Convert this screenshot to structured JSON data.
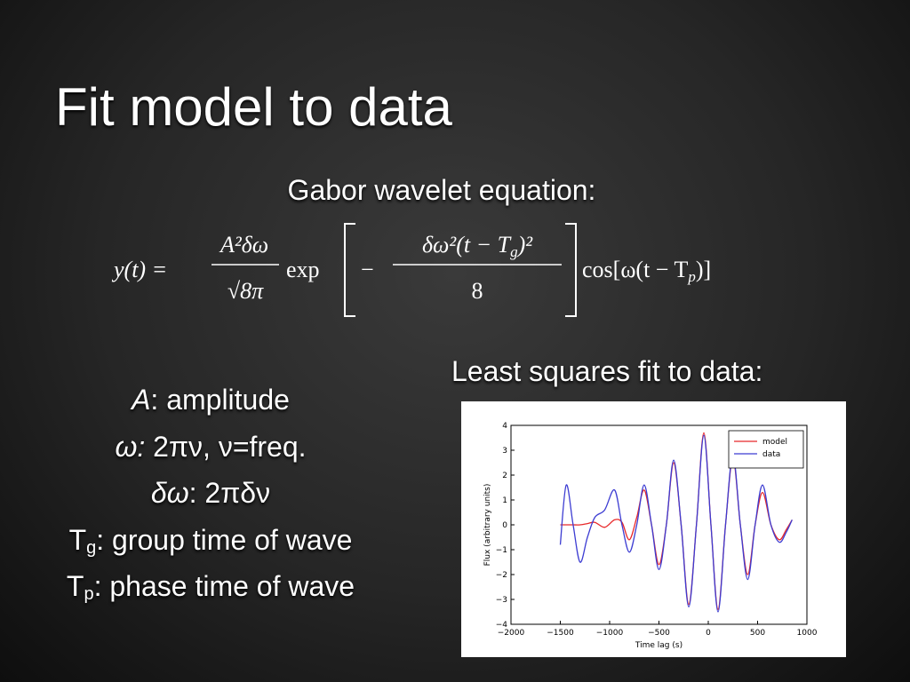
{
  "title": "Fit model to data",
  "equation_heading": "Gabor wavelet equation:",
  "equation": {
    "lhs": "y(t) =",
    "frac1_num": "A²δω",
    "frac1_den": "√8π",
    "exp": "exp",
    "minus": "−",
    "frac2_num": [
      "δω²(t − T",
      "g",
      ")²"
    ],
    "frac2_den": "8",
    "cos": [
      "cos[ω(t − T",
      "p",
      ")]"
    ]
  },
  "definitions": [
    {
      "symbol": "A",
      "text": ": amplitude"
    },
    {
      "symbol": "ω:",
      "text": " 2πν, ν=freq."
    },
    {
      "symbol": "δω",
      "text": ": 2πδν"
    },
    {
      "symbol": "T",
      "sub": "g",
      "text": ": group time of wave"
    },
    {
      "symbol": "T",
      "sub": "p",
      "text": ": phase time of wave"
    }
  ],
  "plot_heading": "Least squares fit to data:",
  "chart_data": {
    "type": "line",
    "x_label": "Time lag (s)",
    "y_label": "Flux (arbitrary units)",
    "xlim": [
      -2000,
      1000
    ],
    "ylim": [
      -4,
      4
    ],
    "xticks": [
      {
        "value": -2000,
        "label": "−2000"
      },
      {
        "value": -1500,
        "label": "−1500"
      },
      {
        "value": -1000,
        "label": "−1000"
      },
      {
        "value": -500,
        "label": "−500"
      },
      0,
      500,
      1000
    ],
    "yticks": [
      {
        "value": -4,
        "label": "−4"
      },
      {
        "value": -3,
        "label": "−3"
      },
      {
        "value": -2,
        "label": "−2"
      },
      {
        "value": -1,
        "label": "−1"
      },
      0,
      1,
      2,
      3,
      4
    ],
    "legend": "upper right",
    "x": [
      -1500,
      -1440,
      -1370,
      -1300,
      -1225,
      -1150,
      -1050,
      -950,
      -875,
      -800,
      -725,
      -650,
      -575,
      -500,
      -425,
      -351,
      -275,
      -198,
      -120,
      -45,
      27,
      99,
      175,
      250,
      325,
      400,
      475,
      550,
      635,
      720,
      790,
      850
    ],
    "series": [
      {
        "name": "model",
        "color": "#e8282a",
        "values": [
          0,
          0,
          0,
          0,
          0.05,
          0.1,
          -0.1,
          0.2,
          0.1,
          -0.6,
          0.3,
          1.4,
          0,
          -1.6,
          0,
          2.5,
          0,
          -3.2,
          0,
          3.7,
          0,
          -3.4,
          0,
          2.7,
          0,
          -2.0,
          0,
          1.3,
          0,
          -0.6,
          -0.2,
          0.2
        ]
      },
      {
        "name": "data",
        "color": "#3c3cd2",
        "values": [
          -0.8,
          1.6,
          0,
          -1.5,
          -0.5,
          0.3,
          0.6,
          1.4,
          0,
          -1.1,
          0,
          1.6,
          0,
          -1.8,
          0,
          2.6,
          0,
          -3.3,
          0,
          3.6,
          0,
          -3.5,
          0,
          2.8,
          0,
          -2.2,
          0,
          1.6,
          0,
          -0.7,
          -0.3,
          0.2
        ]
      }
    ]
  }
}
